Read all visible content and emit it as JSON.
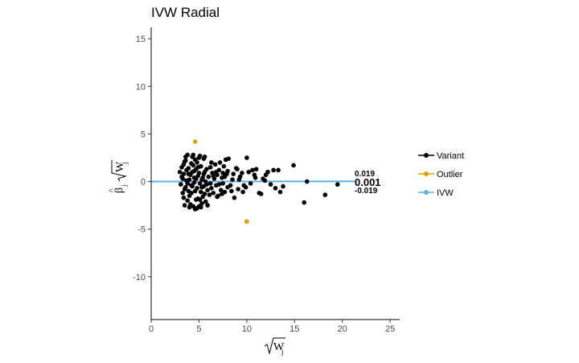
{
  "chart_data": {
    "type": "scatter",
    "title": "IVW Radial",
    "xlabel": "√W_j",
    "ylabel": "β̂_j √W_j",
    "xlim": [
      0,
      26
    ],
    "ylim": [
      -14.5,
      16.2
    ],
    "x_ticks": [
      0,
      5,
      10,
      15,
      20,
      25
    ],
    "y_ticks": [
      -10,
      -5,
      0,
      5,
      10,
      15
    ],
    "grid": false,
    "legend_position": "right",
    "colors": {
      "Variant": "#000000",
      "Outlier": "#E69F00",
      "IVW": "#56B4E9"
    },
    "series": [
      {
        "name": "Variant",
        "points": [
          [
            3.0,
            1.0
          ],
          [
            3.1,
            -0.3
          ],
          [
            3.2,
            0.5
          ],
          [
            3.3,
            -1.2
          ],
          [
            3.4,
            1.8
          ],
          [
            3.5,
            -0.8
          ],
          [
            3.6,
            2.2
          ],
          [
            3.7,
            0.1
          ],
          [
            3.8,
            -2.0
          ],
          [
            3.9,
            1.4
          ],
          [
            4.0,
            -1.5
          ],
          [
            4.1,
            0.7
          ],
          [
            4.2,
            -0.4
          ],
          [
            4.3,
            2.6
          ],
          [
            4.4,
            -2.6
          ],
          [
            4.5,
            1.1
          ],
          [
            4.6,
            -1.0
          ],
          [
            4.7,
            0.3
          ],
          [
            4.8,
            2.0
          ],
          [
            4.9,
            -1.8
          ],
          [
            5.0,
            0.9
          ],
          [
            5.1,
            -0.2
          ],
          [
            5.2,
            1.6
          ],
          [
            5.3,
            -2.3
          ],
          [
            5.4,
            0.4
          ],
          [
            5.5,
            2.4
          ],
          [
            5.6,
            -1.3
          ],
          [
            5.7,
            0.0
          ],
          [
            5.8,
            1.3
          ],
          [
            5.9,
            -0.9
          ],
          [
            3.3,
            0.3
          ],
          [
            3.6,
            -0.6
          ],
          [
            3.9,
            0.8
          ],
          [
            4.2,
            1.9
          ],
          [
            4.5,
            -0.1
          ],
          [
            4.8,
            -0.7
          ],
          [
            5.1,
            2.7
          ],
          [
            5.4,
            -1.6
          ],
          [
            5.7,
            -2.1
          ],
          [
            6.0,
            0.5
          ],
          [
            3.4,
            -1.7
          ],
          [
            3.7,
            1.2
          ],
          [
            4.0,
            0.2
          ],
          [
            4.3,
            -0.5
          ],
          [
            4.6,
            2.3
          ],
          [
            4.9,
            0.6
          ],
          [
            5.2,
            -1.1
          ],
          [
            5.5,
            0.8
          ],
          [
            5.8,
            -0.3
          ],
          [
            6.1,
            -1.4
          ],
          [
            3.2,
            1.5
          ],
          [
            3.5,
            2.1
          ],
          [
            3.8,
            -0.2
          ],
          [
            4.1,
            -2.4
          ],
          [
            4.4,
            1.7
          ],
          [
            4.7,
            -1.9
          ],
          [
            5.0,
            2.5
          ],
          [
            5.3,
            0.2
          ],
          [
            5.6,
            1.0
          ],
          [
            5.9,
            -2.5
          ],
          [
            3.5,
            -2.5
          ],
          [
            4.0,
            -2.7
          ],
          [
            4.4,
            2.8
          ],
          [
            4.8,
            -2.8
          ],
          [
            5.2,
            -2.7
          ],
          [
            5.6,
            2.6
          ],
          [
            3.8,
            2.8
          ],
          [
            4.6,
            -2.9
          ],
          [
            5.0,
            -2.6
          ],
          [
            3.6,
            2.6
          ],
          [
            4.2,
            -1.2
          ],
          [
            4.5,
            0.4
          ],
          [
            4.9,
            1.5
          ],
          [
            5.3,
            -0.6
          ],
          [
            3.9,
            -1.0
          ],
          [
            4.3,
            1.0
          ],
          [
            5.1,
            -1.9
          ],
          [
            5.5,
            -0.5
          ],
          [
            3.4,
            0.8
          ],
          [
            4.7,
            1.3
          ],
          [
            6.2,
            1.5
          ],
          [
            6.3,
            -0.7
          ],
          [
            6.4,
            0.9
          ],
          [
            6.5,
            -1.2
          ],
          [
            6.6,
            0.3
          ],
          [
            6.7,
            1.8
          ],
          [
            6.8,
            -0.4
          ],
          [
            6.9,
            0.7
          ],
          [
            7.0,
            -1.5
          ],
          [
            7.1,
            1.2
          ],
          [
            7.2,
            2.0
          ],
          [
            7.3,
            -0.9
          ],
          [
            7.4,
            0.4
          ],
          [
            7.5,
            -0.2
          ],
          [
            7.6,
            1.6
          ],
          [
            7.7,
            -1.1
          ],
          [
            7.8,
            2.3
          ],
          [
            7.9,
            0.8
          ],
          [
            8.0,
            -0.6
          ],
          [
            8.1,
            2.4
          ],
          [
            6.2,
            -0.2
          ],
          [
            6.5,
            0.6
          ],
          [
            6.8,
            1.0
          ],
          [
            7.1,
            -0.3
          ],
          [
            7.4,
            -1.3
          ],
          [
            7.7,
            0.5
          ],
          [
            8.0,
            1.1
          ],
          [
            6.3,
            2.0
          ],
          [
            6.9,
            -1.6
          ],
          [
            7.5,
            0.9
          ],
          [
            8.3,
            -0.4
          ],
          [
            8.5,
            0.2
          ],
          [
            8.7,
            -1.7
          ],
          [
            8.9,
            1.4
          ],
          [
            9.1,
            -0.8
          ],
          [
            9.3,
            0.5
          ],
          [
            9.5,
            0.9
          ],
          [
            9.7,
            -0.4
          ],
          [
            9.9,
            -0.6
          ],
          [
            10.0,
            2.5
          ],
          [
            10.2,
            1.0
          ],
          [
            10.4,
            -0.2
          ],
          [
            10.6,
            1.2
          ],
          [
            10.8,
            0.7
          ],
          [
            11.0,
            1.3
          ],
          [
            11.3,
            -1.2
          ],
          [
            11.5,
            -1.3
          ],
          [
            11.7,
            0.3
          ],
          [
            12.0,
            0.7
          ],
          [
            12.2,
            1.0
          ],
          [
            12.5,
            -0.3
          ],
          [
            12.8,
            1.2
          ],
          [
            13.0,
            -0.7
          ],
          [
            13.3,
            1.2
          ],
          [
            13.5,
            -1.1
          ],
          [
            13.8,
            -0.5
          ],
          [
            14.9,
            1.7
          ],
          [
            16.0,
            -2.2
          ],
          [
            16.3,
            0.0
          ],
          [
            18.2,
            -1.4
          ],
          [
            19.5,
            -0.3
          ],
          [
            9.2,
            0.2
          ],
          [
            9.6,
            -1.1
          ],
          [
            10.9,
            0.4
          ],
          [
            11.9,
            0.1
          ],
          [
            8.6,
            0.8
          ],
          [
            8.4,
            -1.0
          ],
          [
            9.0,
            1.3
          ]
        ]
      },
      {
        "name": "Outlier",
        "points": [
          [
            4.6,
            4.2
          ],
          [
            10.0,
            -4.2
          ]
        ]
      },
      {
        "name": "IVW",
        "slope": 0.001
      }
    ],
    "annotations": [
      "0.019",
      "0.001",
      "-0.019"
    ]
  }
}
